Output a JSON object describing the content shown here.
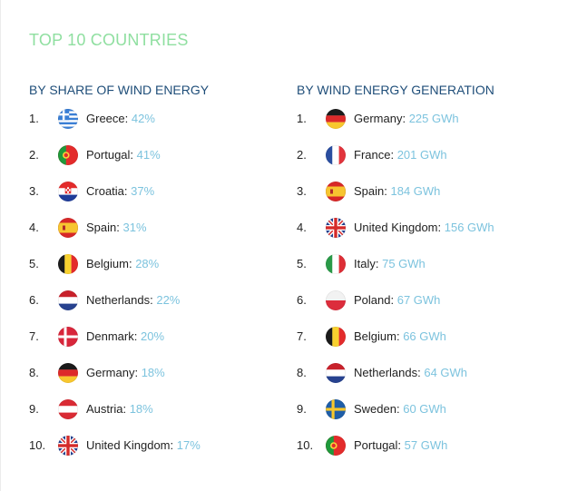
{
  "title": "TOP 10 COUNTRIES",
  "share": {
    "heading": "BY SHARE OF WIND ENERGY",
    "items": [
      {
        "rank": "1.",
        "name": "Greece:",
        "value": "42%",
        "flag_icon": "greece-flag-icon"
      },
      {
        "rank": "2.",
        "name": "Portugal:",
        "value": "41%",
        "flag_icon": "portugal-flag-icon"
      },
      {
        "rank": "3.",
        "name": "Croatia:",
        "value": "37%",
        "flag_icon": "croatia-flag-icon"
      },
      {
        "rank": "4.",
        "name": "Spain:",
        "value": "31%",
        "flag_icon": "spain-flag-icon"
      },
      {
        "rank": "5.",
        "name": "Belgium:",
        "value": "28%",
        "flag_icon": "belgium-flag-icon"
      },
      {
        "rank": "6.",
        "name": "Netherlands:",
        "value": "22%",
        "flag_icon": "netherlands-flag-icon"
      },
      {
        "rank": "7.",
        "name": "Denmark:",
        "value": "20%",
        "flag_icon": "denmark-flag-icon"
      },
      {
        "rank": "8.",
        "name": "Germany:",
        "value": "18%",
        "flag_icon": "germany-flag-icon"
      },
      {
        "rank": "9.",
        "name": "Austria:",
        "value": "18%",
        "flag_icon": "austria-flag-icon"
      },
      {
        "rank": "10.",
        "name": "United Kingdom:",
        "value": "17%",
        "flag_icon": "united-kingdom-flag-icon"
      }
    ]
  },
  "generation": {
    "heading": "BY WIND ENERGY GENERATION",
    "items": [
      {
        "rank": "1.",
        "name": "Germany:",
        "value": "225 GWh",
        "flag_icon": "germany-flag-icon"
      },
      {
        "rank": "2.",
        "name": "France:",
        "value": "201 GWh",
        "flag_icon": "france-flag-icon"
      },
      {
        "rank": "3.",
        "name": "Spain:",
        "value": "184 GWh",
        "flag_icon": "spain-flag-icon"
      },
      {
        "rank": "4.",
        "name": "United Kingdom:",
        "value": "156 GWh",
        "flag_icon": "united-kingdom-flag-icon"
      },
      {
        "rank": "5.",
        "name": "Italy:",
        "value": "75 GWh",
        "flag_icon": "italy-flag-icon"
      },
      {
        "rank": "6.",
        "name": "Poland:",
        "value": "67 GWh",
        "flag_icon": "poland-flag-icon"
      },
      {
        "rank": "7.",
        "name": "Belgium:",
        "value": "66 GWh",
        "flag_icon": "belgium-flag-icon"
      },
      {
        "rank": "8.",
        "name": "Netherlands:",
        "value": "64 GWh",
        "flag_icon": "netherlands-flag-icon"
      },
      {
        "rank": "9.",
        "name": "Sweden:",
        "value": "60 GWh",
        "flag_icon": "sweden-flag-icon"
      },
      {
        "rank": "10.",
        "name": "Portugal:",
        "value": "57 GWh",
        "flag_icon": "portugal-flag-icon"
      }
    ]
  },
  "colors": {
    "title": "#8fdfa0",
    "heading": "#1f4e79",
    "value": "#7cc3de",
    "text": "#222222"
  }
}
